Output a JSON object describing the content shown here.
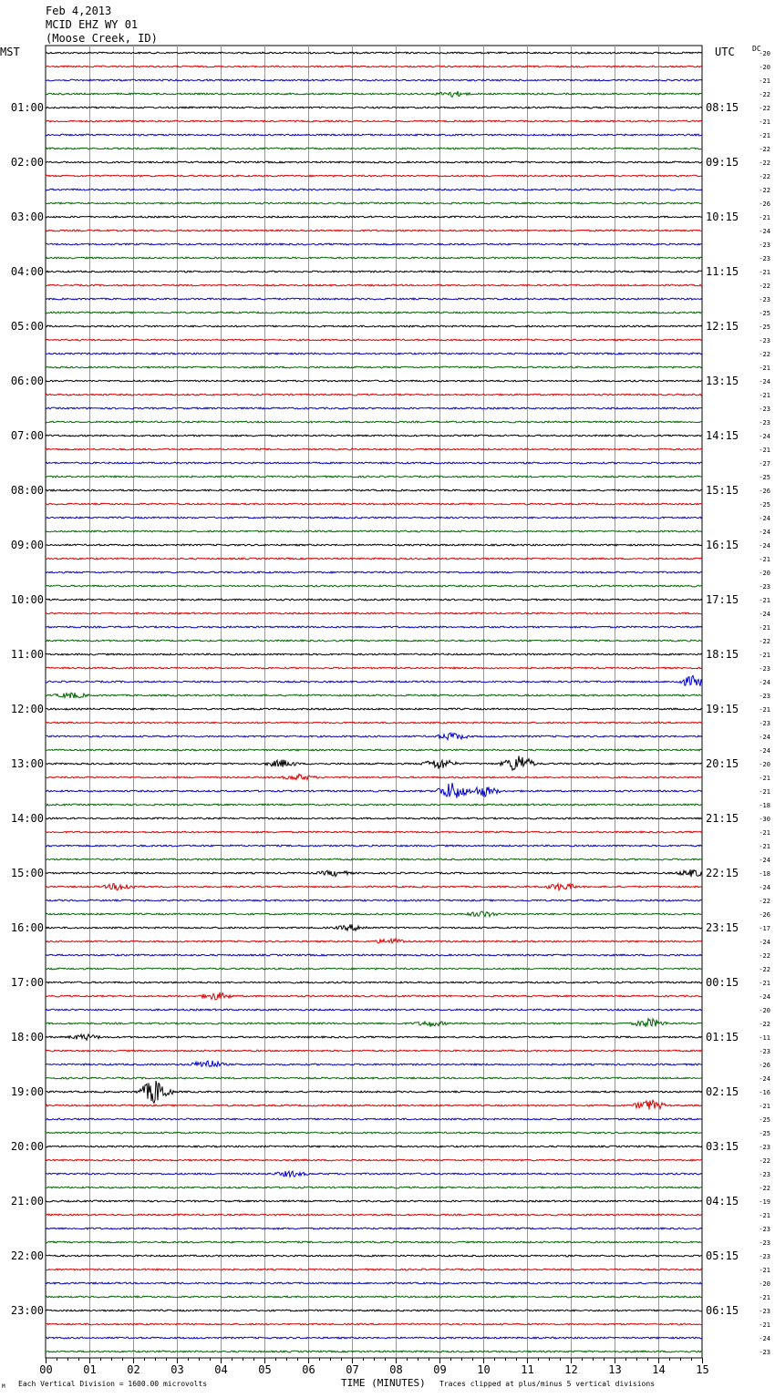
{
  "header": {
    "date": "Feb 4,2013",
    "station": "MCID EHZ WY 01",
    "location": "(Moose Creek, ID)"
  },
  "labels": {
    "left_tz": "MST",
    "right_tz": "UTC",
    "dc": "DC"
  },
  "footer": {
    "mark": "M",
    "scale": "Each Vertical Division = 1600.00 microvolts",
    "xlabel": "TIME (MINUTES)",
    "clip": "Traces clipped at plus/minus 5 vertical divisions"
  },
  "colors": {
    "trace_cycle": [
      "#000000",
      "#dd0000",
      "#0000cc",
      "#006600"
    ],
    "grid": "#999999"
  },
  "chart_data": {
    "type": "line",
    "title": "Feb 4,2013",
    "xlabel": "TIME (MINUTES)",
    "ylabel": "",
    "xlim": [
      0,
      15
    ],
    "x_ticks": [
      "00",
      "01",
      "02",
      "03",
      "04",
      "05",
      "06",
      "07",
      "08",
      "09",
      "10",
      "11",
      "12",
      "13",
      "14",
      "15"
    ],
    "grid": true,
    "traces_per_hour": 4,
    "hour_labels_left": [
      "",
      "01:00",
      "02:00",
      "03:00",
      "04:00",
      "05:00",
      "06:00",
      "07:00",
      "08:00",
      "09:00",
      "10:00",
      "11:00",
      "12:00",
      "13:00",
      "14:00",
      "15:00",
      "16:00",
      "17:00",
      "18:00",
      "19:00",
      "20:00",
      "21:00",
      "22:00",
      "23:00"
    ],
    "hour_labels_right": [
      "",
      "08:15",
      "09:15",
      "10:15",
      "11:15",
      "12:15",
      "13:15",
      "14:15",
      "15:15",
      "16:15",
      "17:15",
      "18:15",
      "19:15",
      "20:15",
      "21:15",
      "22:15",
      "23:15",
      "00:15",
      "01:15",
      "02:15",
      "03:15",
      "04:15",
      "05:15",
      "06:15"
    ],
    "dc_offsets": [
      -20,
      -20,
      -21,
      -22,
      -22,
      -21,
      -21,
      -22,
      -22,
      -22,
      -22,
      -26,
      -21,
      -24,
      -23,
      -23,
      -21,
      -22,
      -23,
      -25,
      -25,
      -23,
      -22,
      -21,
      -24,
      -21,
      -23,
      -23,
      -24,
      -21,
      -27,
      -25,
      -26,
      -25,
      -24,
      -24,
      -24,
      -21,
      -20,
      -23,
      -21,
      -24,
      -21,
      -22,
      -21,
      -23,
      -24,
      -23,
      -21,
      -23,
      -24,
      -24,
      -20,
      -21,
      -21,
      -18,
      -30,
      -21,
      -21,
      -24,
      -18,
      -24,
      -22,
      -26,
      -17,
      -24,
      -22,
      -22,
      -21,
      -24,
      -20,
      -22,
      -11,
      -23,
      -26,
      -24,
      -16,
      -21,
      -25,
      -25,
      -23,
      -22,
      -23,
      -22,
      -19,
      -21,
      -23,
      -23,
      -23,
      -21,
      -20,
      -21,
      -23,
      -21,
      -24,
      -23
    ],
    "events": [
      {
        "trace": 3,
        "minute": 9.3,
        "amp": 3
      },
      {
        "trace": 46,
        "minute": 14.8,
        "amp": 6
      },
      {
        "trace": 47,
        "minute": 0.6,
        "amp": 3
      },
      {
        "trace": 50,
        "minute": 9.3,
        "amp": 4
      },
      {
        "trace": 52,
        "minute": 5.4,
        "amp": 4
      },
      {
        "trace": 52,
        "minute": 9.0,
        "amp": 6
      },
      {
        "trace": 52,
        "minute": 10.8,
        "amp": 10
      },
      {
        "trace": 53,
        "minute": 5.8,
        "amp": 3
      },
      {
        "trace": 54,
        "minute": 9.3,
        "amp": 10
      },
      {
        "trace": 54,
        "minute": 10.0,
        "amp": 6
      },
      {
        "trace": 60,
        "minute": 6.6,
        "amp": 3
      },
      {
        "trace": 60,
        "minute": 14.8,
        "amp": 4
      },
      {
        "trace": 61,
        "minute": 1.7,
        "amp": 4
      },
      {
        "trace": 61,
        "minute": 11.8,
        "amp": 4
      },
      {
        "trace": 63,
        "minute": 10.0,
        "amp": 3
      },
      {
        "trace": 64,
        "minute": 7.0,
        "amp": 3
      },
      {
        "trace": 65,
        "minute": 7.9,
        "amp": 3
      },
      {
        "trace": 69,
        "minute": 3.9,
        "amp": 4
      },
      {
        "trace": 71,
        "minute": 8.8,
        "amp": 3
      },
      {
        "trace": 71,
        "minute": 13.8,
        "amp": 5
      },
      {
        "trace": 72,
        "minute": 0.9,
        "amp": 3
      },
      {
        "trace": 74,
        "minute": 3.7,
        "amp": 5
      },
      {
        "trace": 76,
        "minute": 2.5,
        "amp": 14
      },
      {
        "trace": 77,
        "minute": 13.8,
        "amp": 6
      },
      {
        "trace": 82,
        "minute": 5.6,
        "amp": 3
      }
    ]
  }
}
